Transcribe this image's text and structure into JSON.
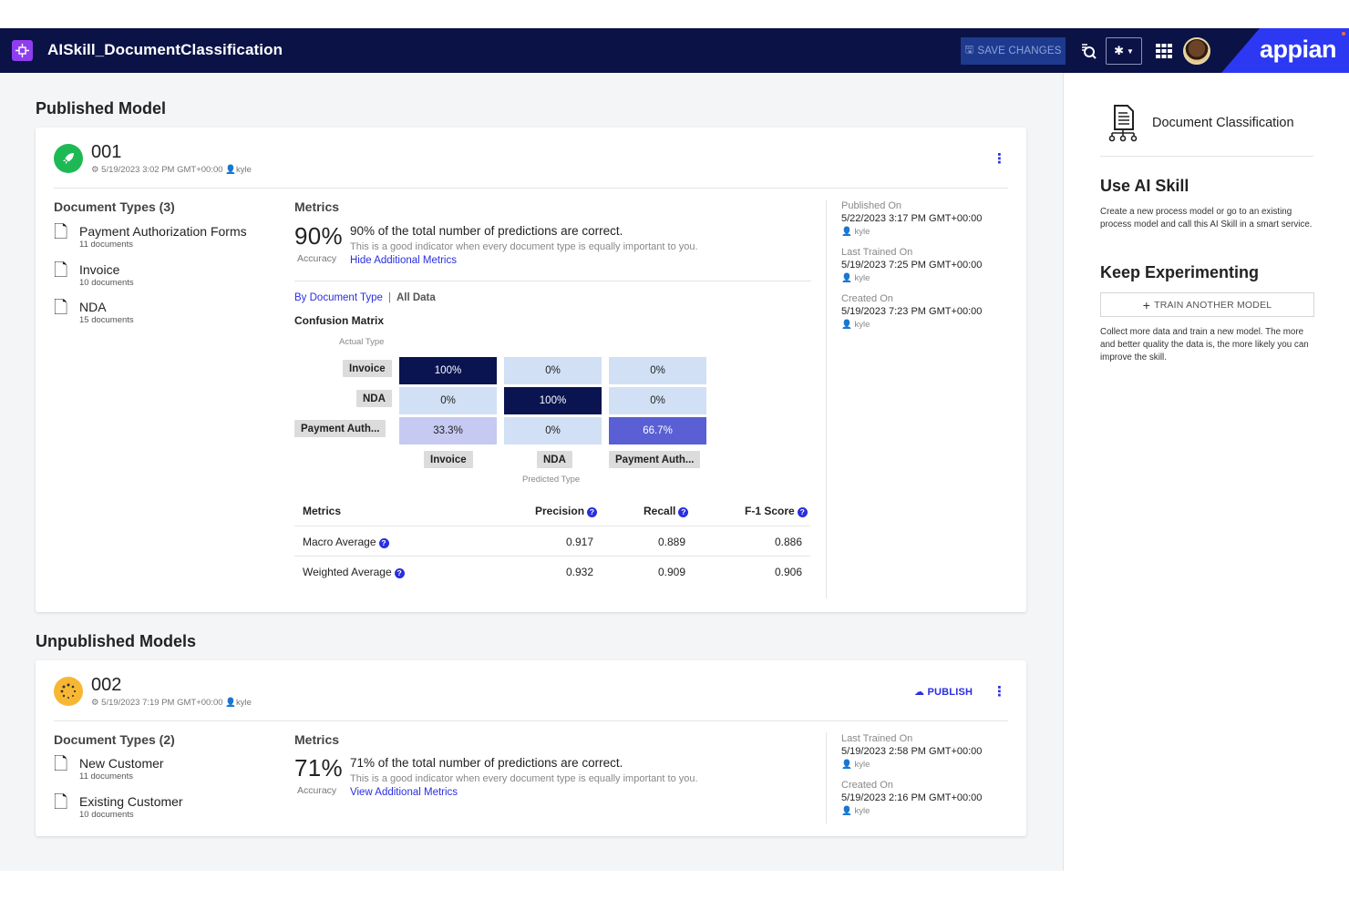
{
  "header": {
    "app_title": "AISkill_DocumentClassification",
    "save_label": "SAVE CHANGES",
    "brand": "appian",
    "colors": {
      "bar": "#0b1246",
      "brand": "#2c38f2",
      "app_icon": "#8e3ef0"
    }
  },
  "published": {
    "section_title": "Published Model",
    "model_number": "001",
    "meta_date": "5/19/2023 3:02 PM GMT+00:00",
    "meta_user": "kyle",
    "doc_types_title": "Document Types (3)",
    "documents": [
      {
        "name": "Payment Authorization Forms",
        "count": "11 documents"
      },
      {
        "name": "Invoice",
        "count": "10 documents"
      },
      {
        "name": "NDA",
        "count": "15 documents"
      }
    ],
    "metrics_title": "Metrics",
    "accuracy_value": "90%",
    "accuracy_label": "Accuracy",
    "accuracy_desc": "90% of the total number of predictions are correct.",
    "accuracy_hint": "This is a good indicator when every document type is equally important to you.",
    "toggle_link": "Hide Additional Metrics",
    "tab_by_type": "By Document Type",
    "tab_sep": "|",
    "tab_all": "All Data",
    "confusion_title": "Confusion Matrix",
    "actual_axis": "Actual Type",
    "predicted_axis": "Predicted Type",
    "row_labels": [
      "Invoice",
      "NDA",
      "Payment Auth..."
    ],
    "col_labels": [
      "Invoice",
      "NDA",
      "Payment Auth..."
    ],
    "matrix": [
      [
        "100%",
        "0%",
        "0%"
      ],
      [
        "0%",
        "100%",
        "0%"
      ],
      [
        "33.3%",
        "0%",
        "66.7%"
      ]
    ],
    "table_headers": {
      "metrics": "Metrics",
      "precision": "Precision",
      "recall": "Recall",
      "f1": "F-1 Score"
    },
    "table_rows": [
      {
        "name": "Macro Average",
        "precision": "0.917",
        "recall": "0.889",
        "f1": "0.886"
      },
      {
        "name": "Weighted Average",
        "precision": "0.932",
        "recall": "0.909",
        "f1": "0.906"
      }
    ],
    "info": [
      {
        "label": "Published On",
        "value": "5/22/2023 3:17 PM GMT+00:00",
        "user": "kyle"
      },
      {
        "label": "Last Trained On",
        "value": "5/19/2023 7:25 PM GMT+00:00",
        "user": "kyle"
      },
      {
        "label": "Created On",
        "value": "5/19/2023 7:23 PM GMT+00:00",
        "user": "kyle"
      }
    ]
  },
  "unpublished": {
    "section_title": "Unpublished Models",
    "model_number": "002",
    "meta_date": "5/19/2023 7:19 PM GMT+00:00",
    "meta_user": "kyle",
    "publish_label": "PUBLISH",
    "doc_types_title": "Document Types (2)",
    "documents": [
      {
        "name": "New Customer",
        "count": "11 documents"
      },
      {
        "name": "Existing Customer",
        "count": "10 documents"
      }
    ],
    "metrics_title": "Metrics",
    "accuracy_value": "71%",
    "accuracy_label": "Accuracy",
    "accuracy_desc": "71% of the total number of predictions are correct.",
    "accuracy_hint": "This is a good indicator when every document type is equally important to you.",
    "toggle_link": "View Additional Metrics",
    "info": [
      {
        "label": "Last Trained On",
        "value": "5/19/2023 2:58 PM GMT+00:00",
        "user": "kyle"
      },
      {
        "label": "Created On",
        "value": "5/19/2023 2:16 PM GMT+00:00",
        "user": "kyle"
      }
    ]
  },
  "sidebar": {
    "skill_title": "Document Classification",
    "use_title": "Use AI Skill",
    "use_text": "Create a new process model or go to an existing process model and call this AI Skill in a smart service.",
    "keep_title": "Keep Experimenting",
    "train_label": "TRAIN ANOTHER MODEL",
    "keep_text": "Collect more data and train a new model. The more and better quality the data is, the more likely you can improve the skill."
  }
}
